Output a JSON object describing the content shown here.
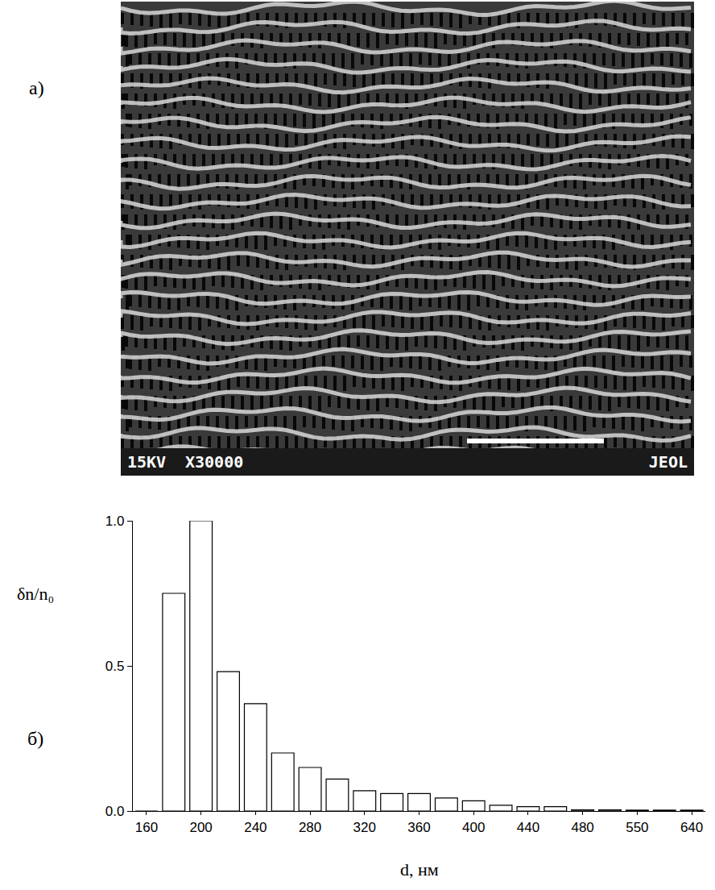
{
  "figure_a": {
    "label": "a)",
    "info_bar": [
      "15KV",
      "X30000",
      "JEOL"
    ]
  },
  "chart_data": {
    "type": "bar",
    "panel_label": "б)",
    "xlabel": "d, нм",
    "ylabel": "δn/n₀",
    "categories": [
      "160",
      null,
      "200",
      null,
      "240",
      null,
      "280",
      null,
      "320",
      null,
      "360",
      null,
      "400",
      null,
      "440",
      null,
      "480",
      null,
      "550",
      null,
      "640"
    ],
    "values": [
      0,
      0.75,
      1.0,
      0.48,
      0.37,
      0.2,
      0.15,
      0.11,
      0.07,
      0.06,
      0.06,
      0.045,
      0.035,
      0.02,
      0.015,
      0.015,
      0.004,
      0.004,
      0.003,
      0.003,
      0.003
    ],
    "color": "#ffffff",
    "ylim": [
      0,
      1.0
    ],
    "yticks": [
      {
        "value": 0,
        "label": "0.0"
      },
      {
        "value": 0.5,
        "label": "0.5"
      },
      {
        "value": 1.0,
        "label": "1.0"
      }
    ],
    "grid": false
  }
}
